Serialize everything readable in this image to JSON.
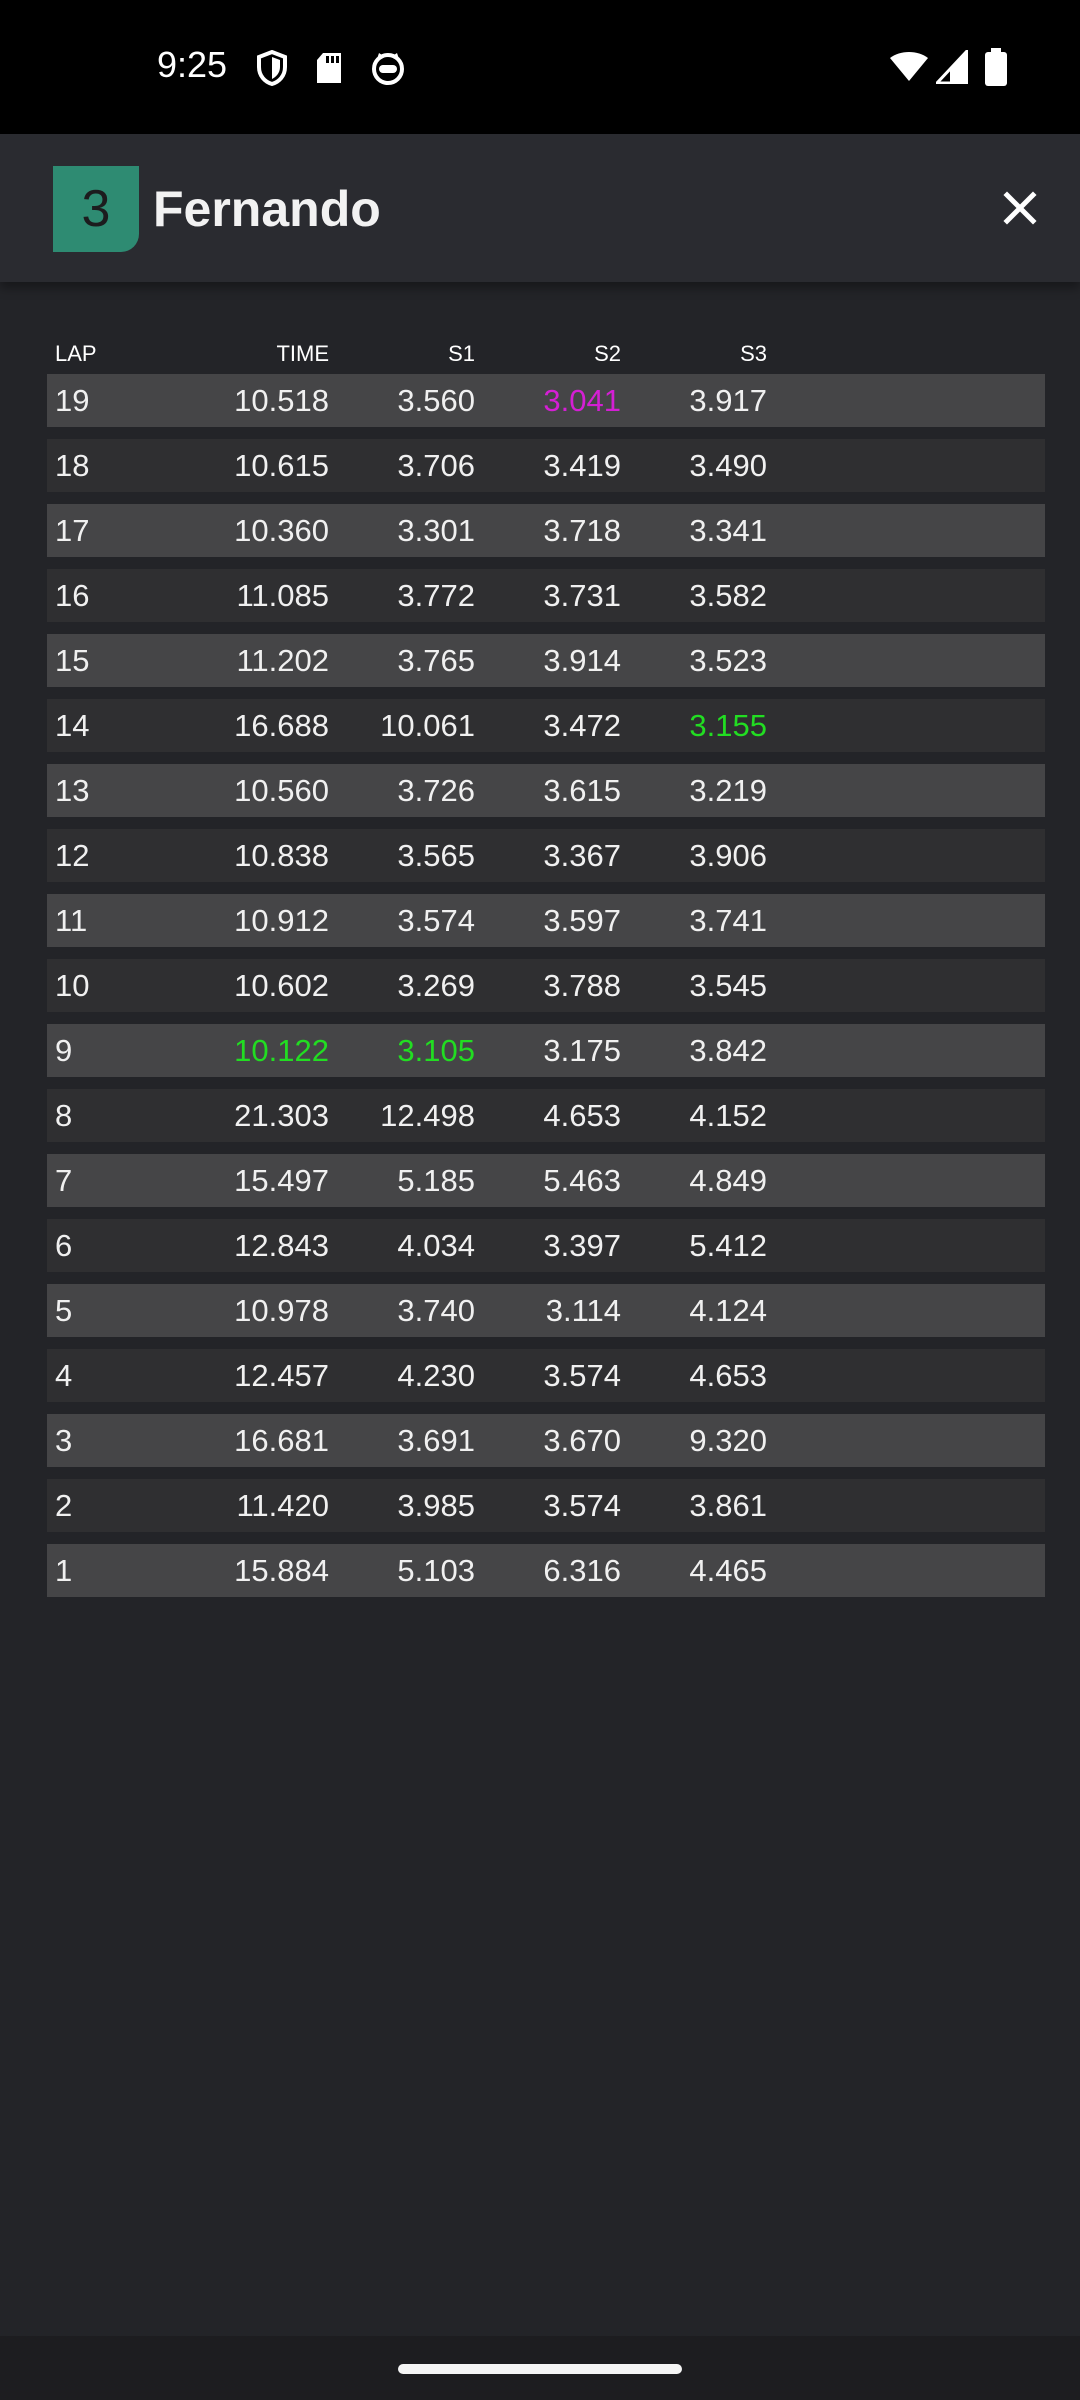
{
  "status_bar": {
    "time": "9:25",
    "left_icons": [
      "shield-icon",
      "sd-card-icon",
      "cat-face-icon"
    ],
    "right_icons": [
      "wifi-icon",
      "cell-signal-icon",
      "battery-icon"
    ]
  },
  "header": {
    "position": "3",
    "driver_name": "Fernando",
    "close_icon": "close-icon",
    "badge_color": "#2e8b72"
  },
  "colors": {
    "personal_best": "#22dd22",
    "overall_best": "#d41fd4",
    "row_light": "#454547",
    "row_dark": "#2f2f31"
  },
  "table": {
    "columns": {
      "lap": "LAP",
      "time": "TIME",
      "s1": "S1",
      "s2": "S2",
      "s3": "S3"
    },
    "rows": [
      {
        "lap": "19",
        "time": "10.518",
        "s1": "3.560",
        "s2": "3.041",
        "s3": "3.917",
        "hl": {
          "s2": "overall_best"
        }
      },
      {
        "lap": "18",
        "time": "10.615",
        "s1": "3.706",
        "s2": "3.419",
        "s3": "3.490"
      },
      {
        "lap": "17",
        "time": "10.360",
        "s1": "3.301",
        "s2": "3.718",
        "s3": "3.341"
      },
      {
        "lap": "16",
        "time": "11.085",
        "s1": "3.772",
        "s2": "3.731",
        "s3": "3.582"
      },
      {
        "lap": "15",
        "time": "11.202",
        "s1": "3.765",
        "s2": "3.914",
        "s3": "3.523"
      },
      {
        "lap": "14",
        "time": "16.688",
        "s1": "10.061",
        "s2": "3.472",
        "s3": "3.155",
        "hl": {
          "s3": "personal_best"
        }
      },
      {
        "lap": "13",
        "time": "10.560",
        "s1": "3.726",
        "s2": "3.615",
        "s3": "3.219"
      },
      {
        "lap": "12",
        "time": "10.838",
        "s1": "3.565",
        "s2": "3.367",
        "s3": "3.906"
      },
      {
        "lap": "11",
        "time": "10.912",
        "s1": "3.574",
        "s2": "3.597",
        "s3": "3.741"
      },
      {
        "lap": "10",
        "time": "10.602",
        "s1": "3.269",
        "s2": "3.788",
        "s3": "3.545"
      },
      {
        "lap": "9",
        "time": "10.122",
        "s1": "3.105",
        "s2": "3.175",
        "s3": "3.842",
        "hl": {
          "time": "personal_best",
          "s1": "personal_best"
        }
      },
      {
        "lap": "8",
        "time": "21.303",
        "s1": "12.498",
        "s2": "4.653",
        "s3": "4.152"
      },
      {
        "lap": "7",
        "time": "15.497",
        "s1": "5.185",
        "s2": "5.463",
        "s3": "4.849"
      },
      {
        "lap": "6",
        "time": "12.843",
        "s1": "4.034",
        "s2": "3.397",
        "s3": "5.412"
      },
      {
        "lap": "5",
        "time": "10.978",
        "s1": "3.740",
        "s2": "3.114",
        "s3": "4.124"
      },
      {
        "lap": "4",
        "time": "12.457",
        "s1": "4.230",
        "s2": "3.574",
        "s3": "4.653"
      },
      {
        "lap": "3",
        "time": "16.681",
        "s1": "3.691",
        "s2": "3.670",
        "s3": "9.320"
      },
      {
        "lap": "2",
        "time": "11.420",
        "s1": "3.985",
        "s2": "3.574",
        "s3": "3.861"
      },
      {
        "lap": "1",
        "time": "15.884",
        "s1": "5.103",
        "s2": "6.316",
        "s3": "4.465"
      }
    ]
  },
  "nav_bar": {
    "home_indicator": "home-pill"
  }
}
